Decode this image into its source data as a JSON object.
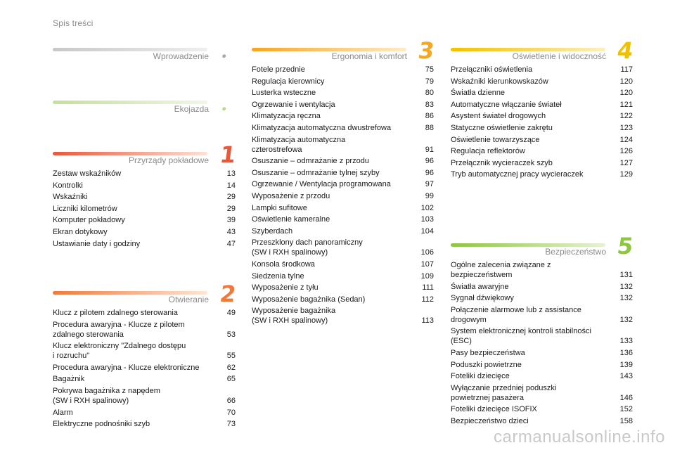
{
  "header": {
    "title": "Spis treści"
  },
  "watermark": "carmanualsonline.info",
  "sections": {
    "intro": {
      "title": "Wprowadzenie",
      "num": "•",
      "color": "#a8a8a8"
    },
    "eco": {
      "title": "Ekojazda",
      "num": "•",
      "color": "#b7d98a"
    },
    "s1": {
      "title": "Przyrządy pokładowe",
      "num": "1",
      "color": "#e8583a",
      "items": [
        {
          "t": "Zestaw wskaźników",
          "p": "13"
        },
        {
          "t": "Kontrolki",
          "p": "14"
        },
        {
          "t": "Wskaźniki",
          "p": "29"
        },
        {
          "t": "Liczniki kilometrów",
          "p": "29"
        },
        {
          "t": "Komputer pokładowy",
          "p": "39"
        },
        {
          "t": "Ekran dotykowy",
          "p": "43"
        },
        {
          "t": "Ustawianie daty i godziny",
          "p": "47"
        }
      ]
    },
    "s2": {
      "title": "Otwieranie",
      "num": "2",
      "color": "#ef7a3a",
      "items": [
        {
          "t": "Klucz z pilotem zdalnego sterowania",
          "p": "49"
        },
        {
          "t": "Procedura awaryjna - Klucze z pilotem\n   zdalnego sterowania",
          "p": "53"
        },
        {
          "t": "Klucz elektroniczny \"Zdalnego dostępu\n   i rozruchu\"",
          "p": "55"
        },
        {
          "t": "Procedura awaryjna - Klucze elektroniczne",
          "p": "62"
        },
        {
          "t": "Bagażnik",
          "p": "65"
        },
        {
          "t": "Pokrywa bagażnika z napędem\n   (SW i RXH spalinowy)",
          "p": "66"
        },
        {
          "t": "Alarm",
          "p": "70"
        },
        {
          "t": "Elektryczne podnośniki szyb",
          "p": "73"
        }
      ]
    },
    "s3": {
      "title": "Ergonomia i komfort",
      "num": "3",
      "color": "#f5a623",
      "items": [
        {
          "t": "Fotele przednie",
          "p": "75"
        },
        {
          "t": "Regulacja kierownicy",
          "p": "79"
        },
        {
          "t": "Lusterka wsteczne",
          "p": "80"
        },
        {
          "t": "Ogrzewanie i wentylacja",
          "p": "83"
        },
        {
          "t": "Klimatyzacja ręczna",
          "p": "86"
        },
        {
          "t": "Klimatyzacja automatyczna dwustrefowa",
          "p": "88"
        },
        {
          "t": "Klimatyzacja automatyczna\n   czterostrefowa",
          "p": "91"
        },
        {
          "t": "Osuszanie – odmrażanie z przodu",
          "p": "96"
        },
        {
          "t": "Osuszanie – odmrażanie tylnej szyby",
          "p": "96"
        },
        {
          "t": "Ogrzewanie / Wentylacja programowana",
          "p": "97"
        },
        {
          "t": "Wyposażenie z przodu",
          "p": "99"
        },
        {
          "t": "Lampki sufitowe",
          "p": "102"
        },
        {
          "t": "Oświetlenie kameralne",
          "p": "103"
        },
        {
          "t": "Szyberdach",
          "p": "104"
        },
        {
          "t": "Przeszklony dach panoramiczny\n   (SW i RXH spalinowy)",
          "p": "106"
        },
        {
          "t": "Konsola środkowa",
          "p": "107"
        },
        {
          "t": "Siedzenia tylne",
          "p": "109"
        },
        {
          "t": "Wyposażenie z tyłu",
          "p": "111"
        },
        {
          "t": "Wyposażenie bagażnika (Sedan)",
          "p": "112"
        },
        {
          "t": "Wyposażenie bagażnika\n   (SW i RXH spalinowy)",
          "p": "113"
        }
      ]
    },
    "s4": {
      "title": "Oświetlenie i widoczność",
      "num": "4",
      "color": "#f2c000",
      "items": [
        {
          "t": "Przełączniki oświetlenia",
          "p": "117"
        },
        {
          "t": "Wskaźniki kierunkowskazów",
          "p": "120"
        },
        {
          "t": "Światła dzienne",
          "p": "120"
        },
        {
          "t": "Automatyczne włączanie świateł",
          "p": "121"
        },
        {
          "t": "Asystent świateł drogowych",
          "p": "122"
        },
        {
          "t": "Statyczne oświetlenie zakrętu",
          "p": "123"
        },
        {
          "t": "Oświetlenie towarzyszące",
          "p": "124"
        },
        {
          "t": "Regulacja reflektorów",
          "p": "126"
        },
        {
          "t": "Przełącznik wycieraczek szyb",
          "p": "127"
        },
        {
          "t": "Tryb automatycznej pracy wycieraczek",
          "p": "129"
        }
      ]
    },
    "s5": {
      "title": "Bezpieczeństwo",
      "num": "5",
      "color": "#8dc63f",
      "items": [
        {
          "t": "Ogólne zalecenia związane z\n   bezpieczeństwem",
          "p": "131"
        },
        {
          "t": "Światła awaryjne",
          "p": "132"
        },
        {
          "t": "Sygnał dźwiękowy",
          "p": "132"
        },
        {
          "t": "Połączenie alarmowe lub z assistance\n   drogowym",
          "p": "132"
        },
        {
          "t": "System elektronicznej kontroli stabilności\n   (ESC)",
          "p": "133"
        },
        {
          "t": "Pasy bezpieczeństwa",
          "p": "136"
        },
        {
          "t": "Poduszki powietrzne",
          "p": "139"
        },
        {
          "t": "Foteliki dziecięce",
          "p": "143"
        },
        {
          "t": "Wyłączanie przedniej poduszki\n   powietrznej pasażera",
          "p": "146"
        },
        {
          "t": "Foteliki dziecięce ISOFIX",
          "p": "152"
        },
        {
          "t": "Bezpieczeństwo dzieci",
          "p": "158"
        }
      ]
    }
  }
}
